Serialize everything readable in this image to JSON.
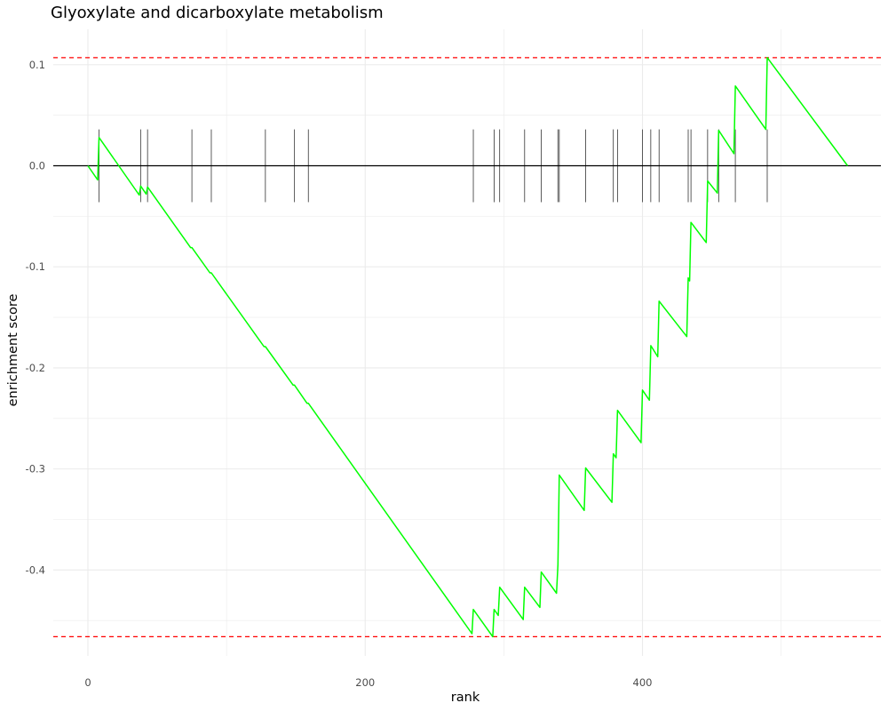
{
  "chart_data": {
    "type": "line",
    "title": "Glyoxylate and dicarboxylate metabolism",
    "xlabel": "rank",
    "ylabel": "enrichment score",
    "xlim": [
      -25,
      572
    ],
    "ylim": [
      -0.485,
      0.135
    ],
    "x_ticks": [
      0,
      200,
      400
    ],
    "x_tick_labels": [
      "0",
      "200",
      "400"
    ],
    "y_ticks": [
      -0.4,
      -0.3,
      -0.2,
      -0.1,
      0.0,
      0.1
    ],
    "y_tick_labels": [
      "-0.4",
      "-0.3",
      "-0.2",
      "-0.1",
      "0.0",
      "0.1"
    ],
    "grid": true,
    "colors": {
      "curve": "#00ff00",
      "reference_lines": "#ff0000",
      "hits": "#333333",
      "zero_line": "#000000",
      "grid": "#ebebeb"
    },
    "reference_lines": {
      "max": 0.107,
      "min": -0.466
    },
    "hits": [
      8,
      38,
      43,
      75,
      89,
      128,
      149,
      159,
      278,
      293,
      297,
      315,
      327,
      339,
      340,
      359,
      379,
      382,
      400,
      406,
      412,
      433,
      435,
      447,
      455,
      467,
      490
    ],
    "series": [
      {
        "values": [
          [
            0,
            0.0
          ],
          [
            7,
            -0.014
          ],
          [
            8,
            0.028
          ],
          [
            37,
            -0.029
          ],
          [
            38,
            -0.02
          ],
          [
            42,
            -0.028
          ],
          [
            43,
            -0.021
          ],
          [
            74,
            -0.081
          ],
          [
            75,
            -0.081
          ],
          [
            88,
            -0.106
          ],
          [
            89,
            -0.106
          ],
          [
            127,
            -0.179
          ],
          [
            128,
            -0.179
          ],
          [
            148,
            -0.217
          ],
          [
            149,
            -0.217
          ],
          [
            158,
            -0.235
          ],
          [
            159,
            -0.235
          ],
          [
            277,
            -0.463
          ],
          [
            278,
            -0.439
          ],
          [
            292,
            -0.466
          ],
          [
            293,
            -0.439
          ],
          [
            296,
            -0.445
          ],
          [
            297,
            -0.417
          ],
          [
            314,
            -0.449
          ],
          [
            315,
            -0.417
          ],
          [
            326,
            -0.437
          ],
          [
            327,
            -0.402
          ],
          [
            338,
            -0.423
          ],
          [
            339,
            -0.395
          ],
          [
            340,
            -0.306
          ],
          [
            358,
            -0.341
          ],
          [
            359,
            -0.299
          ],
          [
            378,
            -0.333
          ],
          [
            379,
            -0.285
          ],
          [
            381,
            -0.289
          ],
          [
            382,
            -0.242
          ],
          [
            399,
            -0.274
          ],
          [
            400,
            -0.222
          ],
          [
            405,
            -0.232
          ],
          [
            406,
            -0.178
          ],
          [
            411,
            -0.189
          ],
          [
            412,
            -0.134
          ],
          [
            432,
            -0.169
          ],
          [
            433,
            -0.111
          ],
          [
            434,
            -0.114
          ],
          [
            435,
            -0.056
          ],
          [
            446,
            -0.076
          ],
          [
            447,
            -0.015
          ],
          [
            454,
            -0.027
          ],
          [
            455,
            0.035
          ],
          [
            466,
            0.012
          ],
          [
            467,
            0.079
          ],
          [
            489,
            0.036
          ],
          [
            490,
            0.107
          ],
          [
            548,
            0.0
          ]
        ]
      }
    ]
  }
}
